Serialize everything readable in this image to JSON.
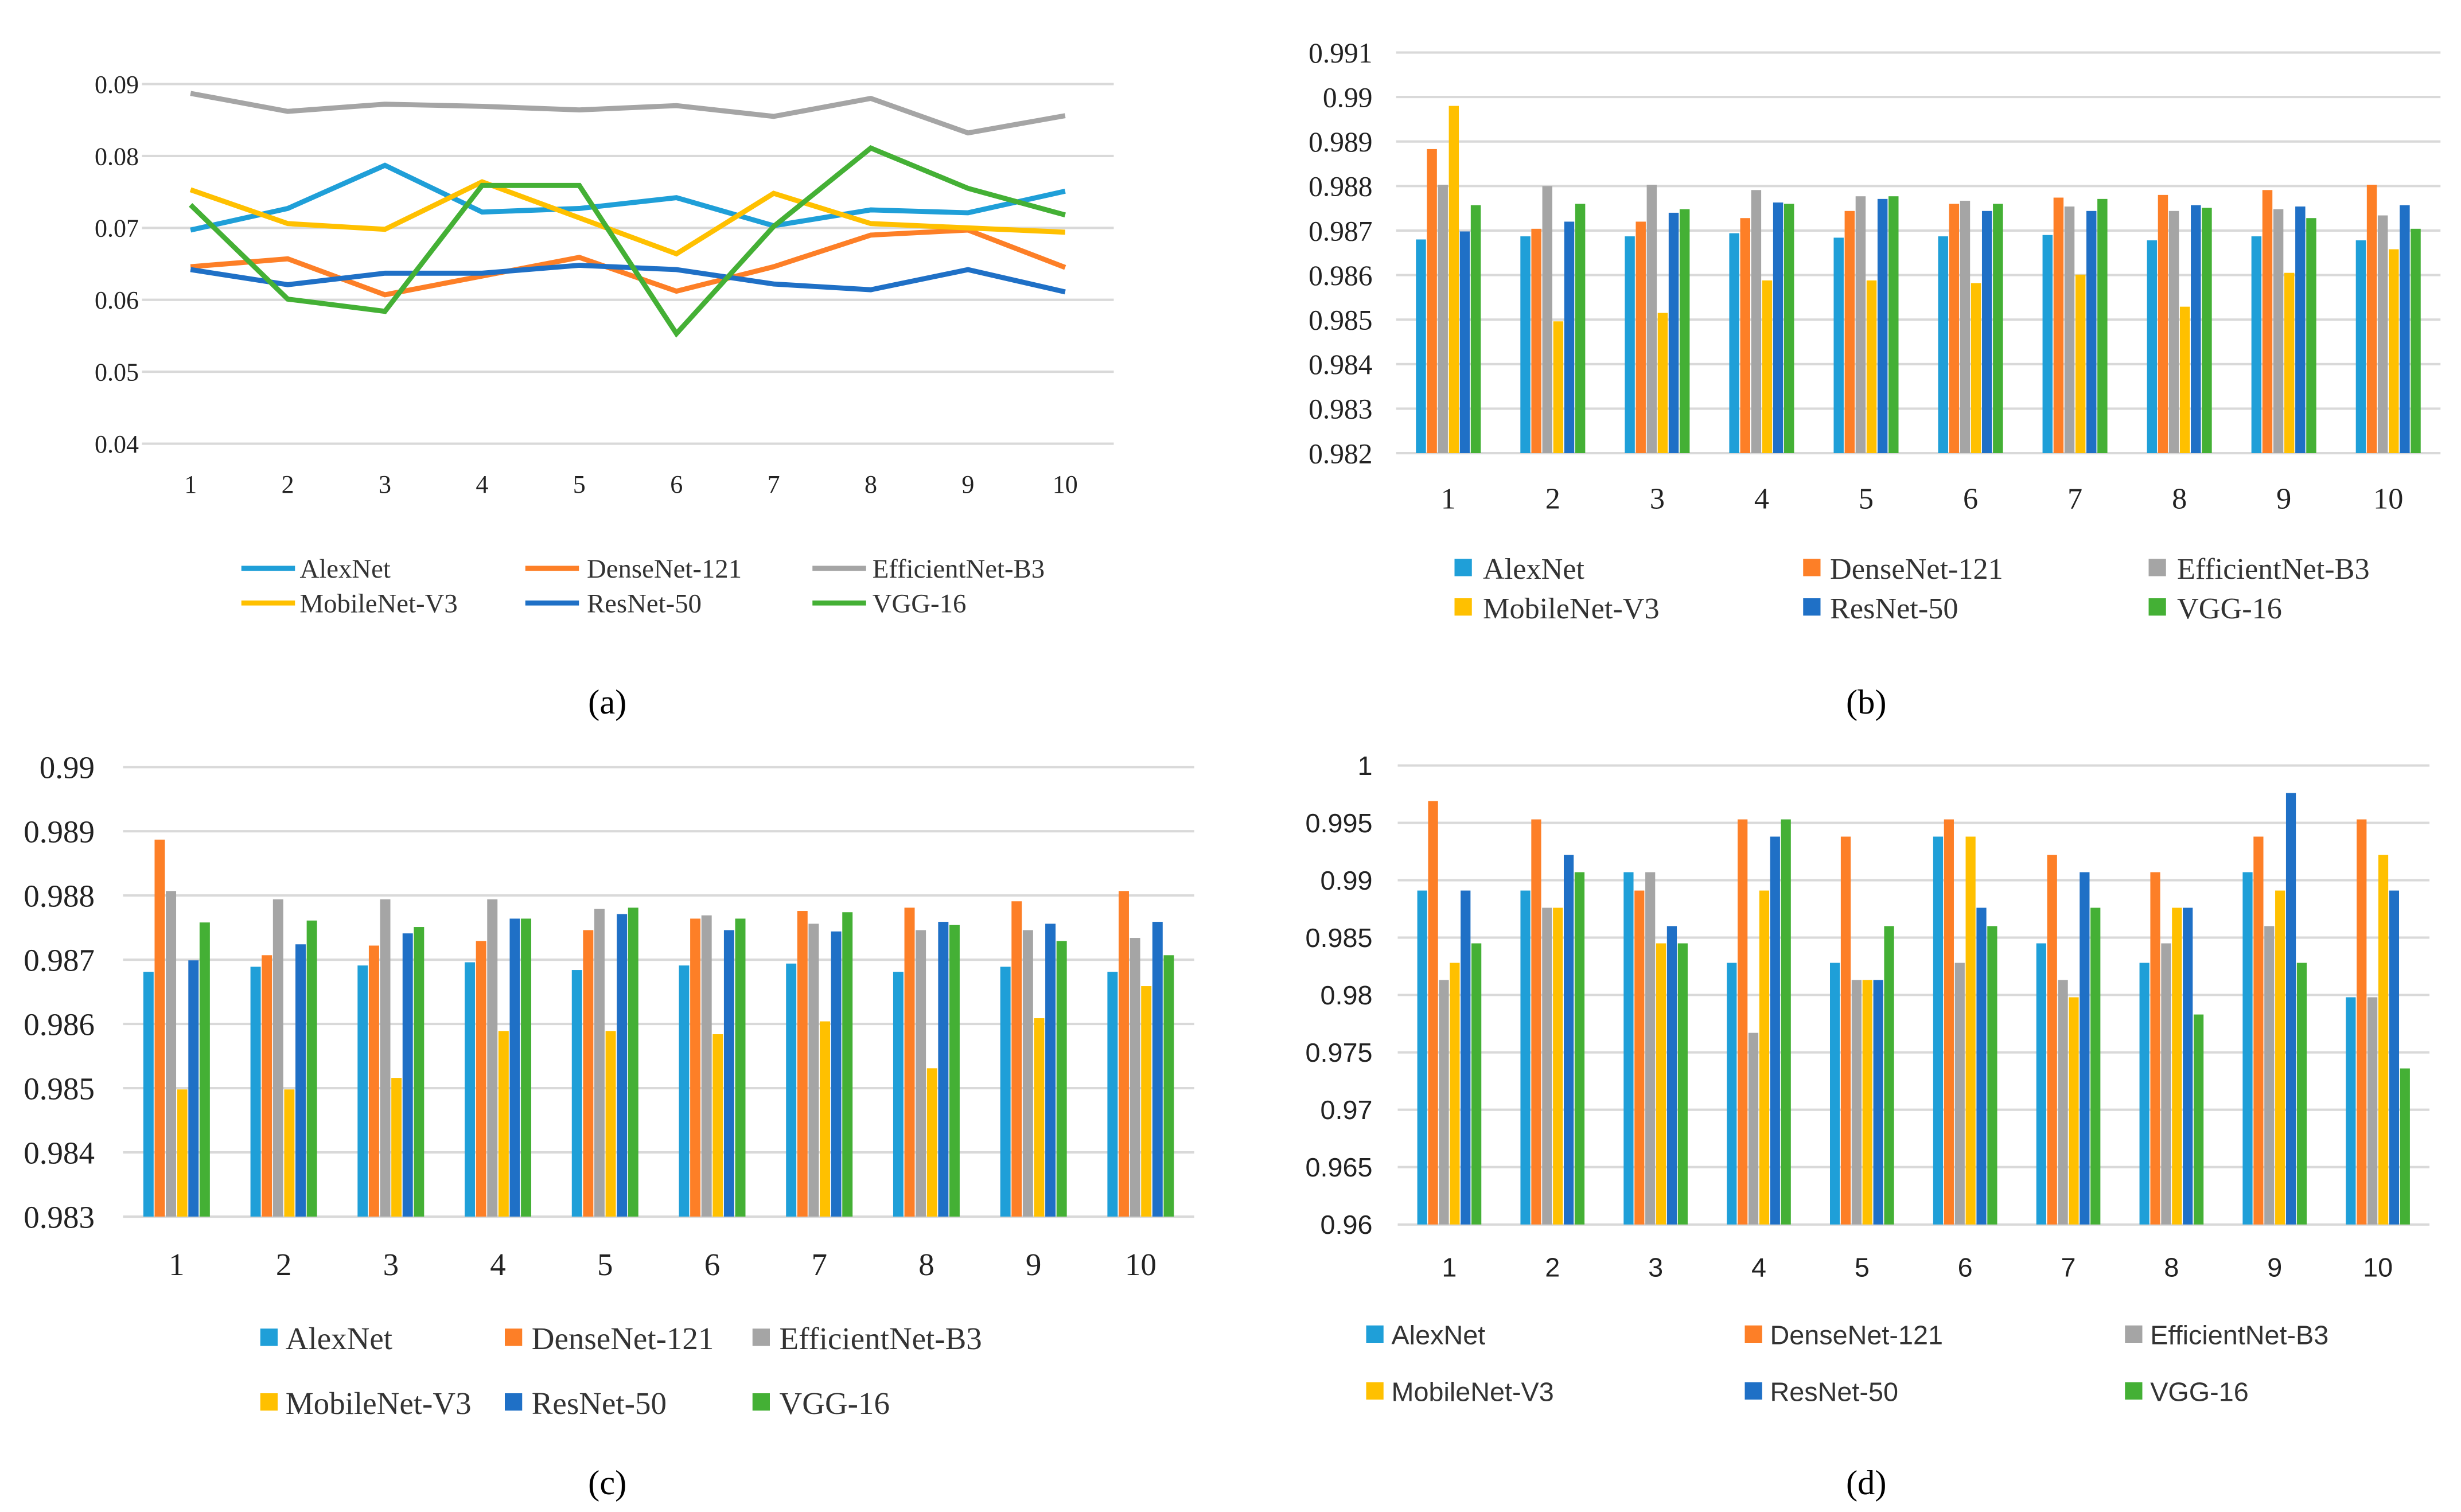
{
  "series_names": [
    "AlexNet",
    "DenseNet-121",
    "EfficientNet-B3",
    "MobileNet-V3",
    "ResNet-50",
    "VGG-16"
  ],
  "colors": {
    "AlexNet": "#1f9fd8",
    "DenseNet-121": "#fd7f27",
    "EfficientNet-B3": "#a5a5a5",
    "MobileNet-V3": "#ffc000",
    "ResNet-50": "#1f70c6",
    "VGG-16": "#44b035"
  },
  "chart_data": [
    {
      "id": "a",
      "caption": "(a)",
      "type": "line",
      "title": "",
      "xlabel": "",
      "ylabel": "",
      "categories": [
        "1",
        "2",
        "3",
        "4",
        "5",
        "6",
        "7",
        "8",
        "9",
        "10"
      ],
      "ylim": [
        0.04,
        0.09
      ],
      "yticks": [
        "0.04",
        "0.05",
        "0.06",
        "0.07",
        "0.08",
        "0.09"
      ],
      "grid": true,
      "legend": "bottom",
      "series": [
        {
          "name": "AlexNet",
          "values": [
            0.0697,
            0.0727,
            0.0787,
            0.0722,
            0.0727,
            0.0742,
            0.0703,
            0.0725,
            0.0721,
            0.0751
          ]
        },
        {
          "name": "DenseNet-121",
          "values": [
            0.0646,
            0.0657,
            0.0607,
            0.0633,
            0.0659,
            0.0612,
            0.0646,
            0.069,
            0.0697,
            0.0645
          ]
        },
        {
          "name": "EfficientNet-B3",
          "values": [
            0.0887,
            0.0862,
            0.0872,
            0.0869,
            0.0864,
            0.087,
            0.0855,
            0.088,
            0.0832,
            0.0856
          ]
        },
        {
          "name": "MobileNet-V3",
          "values": [
            0.0753,
            0.0706,
            0.0698,
            0.0764,
            0.0714,
            0.0664,
            0.0748,
            0.0706,
            0.07,
            0.0694
          ]
        },
        {
          "name": "ResNet-50",
          "values": [
            0.0642,
            0.0621,
            0.0637,
            0.0637,
            0.0648,
            0.0642,
            0.0622,
            0.0614,
            0.0642,
            0.0611
          ]
        },
        {
          "name": "VGG-16",
          "values": [
            0.0732,
            0.0601,
            0.0584,
            0.0759,
            0.0759,
            0.0553,
            0.0702,
            0.0811,
            0.0755,
            0.0718
          ]
        }
      ]
    },
    {
      "id": "b",
      "caption": "(b)",
      "type": "bar",
      "title": "",
      "xlabel": "",
      "ylabel": "",
      "categories": [
        "1",
        "2",
        "3",
        "4",
        "5",
        "6",
        "7",
        "8",
        "9",
        "10"
      ],
      "ylim": [
        0.982,
        0.991
      ],
      "yticks": [
        "0.982",
        "0.983",
        "0.984",
        "0.985",
        "0.986",
        "0.987",
        "0.988",
        "0.989",
        "0.99",
        "0.991"
      ],
      "grid": true,
      "legend": "bottom",
      "series": [
        {
          "name": "AlexNet",
          "values": [
            0.9868,
            0.98687,
            0.98687,
            0.98694,
            0.98684,
            0.98687,
            0.9869,
            0.98678,
            0.98687,
            0.98678
          ]
        },
        {
          "name": "DenseNet-121",
          "values": [
            0.98883,
            0.98704,
            0.9872,
            0.98728,
            0.98744,
            0.9876,
            0.98774,
            0.9878,
            0.98791,
            0.98803
          ]
        },
        {
          "name": "EfficientNet-B3",
          "values": [
            0.98803,
            0.988,
            0.98803,
            0.98791,
            0.98777,
            0.98767,
            0.98754,
            0.98744,
            0.98748,
            0.98734
          ]
        },
        {
          "name": "MobileNet-V3",
          "values": [
            0.9898,
            0.98496,
            0.98515,
            0.98588,
            0.98588,
            0.98582,
            0.98601,
            0.98529,
            0.98605,
            0.98658
          ]
        },
        {
          "name": "ResNet-50",
          "values": [
            0.98698,
            0.9872,
            0.9874,
            0.98763,
            0.98771,
            0.98744,
            0.98744,
            0.98757,
            0.98754,
            0.98757
          ]
        },
        {
          "name": "VGG-16",
          "values": [
            0.98757,
            0.9876,
            0.98748,
            0.9876,
            0.98777,
            0.9876,
            0.98771,
            0.98751,
            0.98728,
            0.98704
          ]
        }
      ]
    },
    {
      "id": "c",
      "caption": "(c)",
      "type": "bar",
      "title": "",
      "xlabel": "",
      "ylabel": "",
      "categories": [
        "1",
        "2",
        "3",
        "4",
        "5",
        "6",
        "7",
        "8",
        "9",
        "10"
      ],
      "ylim": [
        0.983,
        0.99
      ],
      "yticks": [
        "0.983",
        "0.984",
        "0.985",
        "0.986",
        "0.987",
        "0.988",
        "0.989",
        "0.99"
      ],
      "grid": true,
      "legend": "bottom",
      "series": [
        {
          "name": "AlexNet",
          "values": [
            0.98681,
            0.98689,
            0.98691,
            0.98696,
            0.98684,
            0.98691,
            0.98694,
            0.98681,
            0.98689,
            0.98681
          ]
        },
        {
          "name": "DenseNet-121",
          "values": [
            0.98887,
            0.98707,
            0.98722,
            0.98729,
            0.98746,
            0.98764,
            0.98776,
            0.98781,
            0.98791,
            0.98807
          ]
        },
        {
          "name": "EfficientNet-B3",
          "values": [
            0.98807,
            0.98794,
            0.98794,
            0.98794,
            0.98779,
            0.98769,
            0.98756,
            0.98746,
            0.98746,
            0.98734
          ]
        },
        {
          "name": "MobileNet-V3",
          "values": [
            0.98498,
            0.98498,
            0.98516,
            0.98589,
            0.98589,
            0.98584,
            0.98604,
            0.98531,
            0.98609,
            0.98659
          ]
        },
        {
          "name": "ResNet-50",
          "values": [
            0.98699,
            0.98724,
            0.98741,
            0.98764,
            0.98771,
            0.98746,
            0.98744,
            0.98759,
            0.98756,
            0.98759
          ]
        },
        {
          "name": "VGG-16",
          "values": [
            0.98758,
            0.98761,
            0.98751,
            0.98764,
            0.98781,
            0.98764,
            0.98774,
            0.98754,
            0.98729,
            0.98707
          ]
        }
      ]
    },
    {
      "id": "d",
      "caption": "(d)",
      "type": "bar",
      "title": "",
      "xlabel": "",
      "ylabel": "",
      "categories": [
        "1",
        "2",
        "3",
        "4",
        "5",
        "6",
        "7",
        "8",
        "9",
        "10"
      ],
      "ylim": [
        0.96,
        1.0
      ],
      "yticks": [
        "0.96",
        "0.965",
        "0.97",
        "0.975",
        "0.98",
        "0.985",
        "0.99",
        "0.995",
        "1"
      ],
      "grid": true,
      "legend": "bottom",
      "series": [
        {
          "name": "AlexNet",
          "values": [
            0.9891,
            0.9891,
            0.9907,
            0.9828,
            0.9828,
            0.9938,
            0.9845,
            0.9828,
            0.9907,
            0.9798
          ]
        },
        {
          "name": "DenseNet-121",
          "values": [
            0.9969,
            0.9953,
            0.9891,
            0.9953,
            0.9938,
            0.9953,
            0.9922,
            0.9907,
            0.9938,
            0.9953
          ]
        },
        {
          "name": "EfficientNet-B3",
          "values": [
            0.9813,
            0.9876,
            0.9907,
            0.9767,
            0.9813,
            0.9828,
            0.9813,
            0.9845,
            0.986,
            0.9798
          ]
        },
        {
          "name": "MobileNet-V3",
          "values": [
            0.9828,
            0.9876,
            0.9845,
            0.9891,
            0.9813,
            0.9938,
            0.9798,
            0.9876,
            0.9891,
            0.9922
          ]
        },
        {
          "name": "ResNet-50",
          "values": [
            0.9891,
            0.9922,
            0.986,
            0.9938,
            0.9813,
            0.9876,
            0.9907,
            0.9876,
            0.9976,
            0.9891
          ]
        },
        {
          "name": "VGG-16",
          "values": [
            0.9845,
            0.9907,
            0.9845,
            0.9953,
            0.986,
            0.986,
            0.9876,
            0.9783,
            0.9828,
            0.9736
          ]
        }
      ]
    }
  ]
}
